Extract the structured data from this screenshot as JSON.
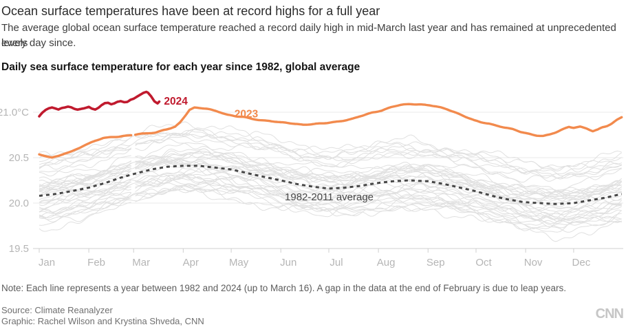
{
  "header": {
    "title": "Ocean surface temperatures have been at record highs for a full year",
    "subtitle_lines": [
      "The average global ocean surface temperature reached a record daily high in mid-March last year and has remained at unprecedented levels",
      "every day since."
    ],
    "chart_title": "Daily sea surface temperature for each year since 1982, global average"
  },
  "footer": {
    "note": "Note: Each line represents a year between 1982 and 2024 (up to March 16). A gap in the data at the end of February is due to leap years.",
    "source": "Source: Climate Reanalyzer",
    "credit": "Graphic: Rachel Wilson and Krystina Shveda, CNN",
    "logo": "CNN"
  },
  "chart_data": {
    "type": "line",
    "title": "Daily sea surface temperature for each year since 1982, global average",
    "unit": "°C",
    "grid": "horizontal-only",
    "colors": {
      "grid": "#e8e8e8",
      "axis": "#cfcfcf",
      "axis_text": "#b5b5b5",
      "background_lines": "#e0e0e0"
    },
    "y_axis": {
      "range": [
        19.45,
        21.3
      ],
      "ticks": [
        {
          "value": 21.0,
          "label": "21.0°C"
        },
        {
          "value": 20.5,
          "label": "20.5"
        },
        {
          "value": 20.0,
          "label": "20.0"
        },
        {
          "value": 19.5,
          "label": "19.5"
        }
      ]
    },
    "x_axis": {
      "month_labels": [
        "Jan",
        "Feb",
        "Mar",
        "Apr",
        "May",
        "Jun",
        "Jul",
        "Aug",
        "Sep",
        "Oct",
        "Nov",
        "Dec"
      ],
      "month_start_days": [
        0,
        31,
        59,
        90,
        120,
        151,
        181,
        212,
        243,
        273,
        304,
        334
      ],
      "days_in_year": 365
    },
    "leap_gap_day": 58.5,
    "series": [
      {
        "name": "1982-2011 average",
        "style": "dashed",
        "color": "#474747",
        "width": 3,
        "gap": false,
        "label": {
          "text": "1982-2011 average",
          "day": 153.5,
          "value": 20.07,
          "bold": false,
          "color": "#474747"
        },
        "points": [
          [
            0,
            20.08
          ],
          [
            10,
            20.1
          ],
          [
            20,
            20.13
          ],
          [
            31,
            20.17
          ],
          [
            41,
            20.22
          ],
          [
            51,
            20.28
          ],
          [
            59,
            20.32
          ],
          [
            70,
            20.37
          ],
          [
            80,
            20.4
          ],
          [
            90,
            20.41
          ],
          [
            100,
            20.41
          ],
          [
            110,
            20.39
          ],
          [
            120,
            20.37
          ],
          [
            130,
            20.33
          ],
          [
            140,
            20.29
          ],
          [
            151,
            20.25
          ],
          [
            161,
            20.21
          ],
          [
            171,
            20.18
          ],
          [
            181,
            20.16
          ],
          [
            191,
            20.17
          ],
          [
            201,
            20.19
          ],
          [
            211,
            20.22
          ],
          [
            221,
            20.24
          ],
          [
            231,
            20.25
          ],
          [
            243,
            20.24
          ],
          [
            253,
            20.21
          ],
          [
            263,
            20.17
          ],
          [
            273,
            20.13
          ],
          [
            283,
            20.08
          ],
          [
            293,
            20.04
          ],
          [
            303,
            20.01
          ],
          [
            313,
            20.0
          ],
          [
            323,
            19.99
          ],
          [
            334,
            20.0
          ],
          [
            344,
            20.03
          ],
          [
            354,
            20.06
          ],
          [
            364,
            20.1
          ]
        ]
      },
      {
        "name": "2023",
        "style": "solid",
        "color": "#f28a4d",
        "width": 3.4,
        "gap": true,
        "label": {
          "text": "2023",
          "day": 122,
          "value": 20.98,
          "bold": true,
          "color": "#f28a4d"
        },
        "points": [
          [
            0,
            20.54
          ],
          [
            4,
            20.52
          ],
          [
            8,
            20.5
          ],
          [
            12,
            20.52
          ],
          [
            16,
            20.55
          ],
          [
            20,
            20.57
          ],
          [
            24,
            20.6
          ],
          [
            28,
            20.63
          ],
          [
            31,
            20.65
          ],
          [
            35,
            20.68
          ],
          [
            40,
            20.71
          ],
          [
            45,
            20.72
          ],
          [
            50,
            20.72
          ],
          [
            55,
            20.73
          ],
          [
            59,
            20.74
          ],
          [
            64,
            20.76
          ],
          [
            68,
            20.77
          ],
          [
            73,
            20.78
          ],
          [
            78,
            20.81
          ],
          [
            82,
            20.83
          ],
          [
            85,
            20.85
          ],
          [
            88,
            20.9
          ],
          [
            91,
            20.97
          ],
          [
            94,
            21.04
          ],
          [
            97,
            21.06
          ],
          [
            101,
            21.05
          ],
          [
            105,
            21.04
          ],
          [
            109,
            21.02
          ],
          [
            113,
            21.0
          ],
          [
            118,
            20.97
          ],
          [
            123,
            20.95
          ],
          [
            128,
            20.94
          ],
          [
            133,
            20.92
          ],
          [
            138,
            20.91
          ],
          [
            144,
            20.9
          ],
          [
            151,
            20.88
          ],
          [
            158,
            20.87
          ],
          [
            165,
            20.86
          ],
          [
            172,
            20.87
          ],
          [
            178,
            20.88
          ],
          [
            184,
            20.9
          ],
          [
            190,
            20.92
          ],
          [
            196,
            20.94
          ],
          [
            202,
            20.97
          ],
          [
            208,
            21.0
          ],
          [
            214,
            21.02
          ],
          [
            220,
            21.05
          ],
          [
            226,
            21.07
          ],
          [
            232,
            21.08
          ],
          [
            238,
            21.08
          ],
          [
            244,
            21.07
          ],
          [
            250,
            21.05
          ],
          [
            255,
            21.03
          ],
          [
            260,
            21.0
          ],
          [
            264,
            20.97
          ],
          [
            268,
            20.94
          ],
          [
            272,
            20.91
          ],
          [
            276,
            20.89
          ],
          [
            281,
            20.88
          ],
          [
            286,
            20.86
          ],
          [
            291,
            20.84
          ],
          [
            296,
            20.82
          ],
          [
            301,
            20.79
          ],
          [
            306,
            20.77
          ],
          [
            311,
            20.75
          ],
          [
            315,
            20.74
          ],
          [
            319,
            20.75
          ],
          [
            323,
            20.77
          ],
          [
            327,
            20.8
          ],
          [
            331,
            20.83
          ],
          [
            334,
            20.82
          ],
          [
            338,
            20.83
          ],
          [
            342,
            20.81
          ],
          [
            346,
            20.78
          ],
          [
            349,
            20.8
          ],
          [
            352,
            20.83
          ],
          [
            355,
            20.85
          ],
          [
            358,
            20.88
          ],
          [
            361,
            20.92
          ],
          [
            364,
            20.95
          ]
        ]
      },
      {
        "name": "2024",
        "style": "solid",
        "color": "#c01a2e",
        "width": 3.6,
        "gap": false,
        "label": {
          "text": "2024",
          "day": 78,
          "value": 21.12,
          "bold": true,
          "color": "#c01a2e"
        },
        "points": [
          [
            0,
            20.95
          ],
          [
            2,
            20.99
          ],
          [
            4,
            21.02
          ],
          [
            6,
            21.04
          ],
          [
            8,
            21.05
          ],
          [
            10,
            21.04
          ],
          [
            12,
            21.03
          ],
          [
            14,
            21.05
          ],
          [
            16,
            21.06
          ],
          [
            18,
            21.07
          ],
          [
            20,
            21.06
          ],
          [
            22,
            21.04
          ],
          [
            24,
            21.03
          ],
          [
            26,
            21.04
          ],
          [
            28,
            21.05
          ],
          [
            31,
            21.07
          ],
          [
            33,
            21.05
          ],
          [
            35,
            21.04
          ],
          [
            37,
            21.06
          ],
          [
            39,
            21.09
          ],
          [
            41,
            21.11
          ],
          [
            43,
            21.11
          ],
          [
            45,
            21.09
          ],
          [
            47,
            21.1
          ],
          [
            49,
            21.12
          ],
          [
            51,
            21.13
          ],
          [
            53,
            21.12
          ],
          [
            55,
            21.12
          ],
          [
            57,
            21.14
          ],
          [
            59,
            21.15
          ],
          [
            61,
            21.17
          ],
          [
            63,
            21.19
          ],
          [
            65,
            21.21
          ],
          [
            67,
            21.22
          ],
          [
            68,
            21.21
          ],
          [
            70,
            21.17
          ],
          [
            72,
            21.12
          ],
          [
            74,
            21.1
          ],
          [
            75,
            21.12
          ]
        ]
      }
    ],
    "background_years": {
      "first": 1982,
      "last": 2022,
      "color": "#e0e0e0",
      "width": 1,
      "based_on": "1982-2011 average",
      "noise_amplitude": 0.05,
      "offsets": [
        -0.26,
        -0.18,
        -0.28,
        -0.3,
        -0.22,
        -0.12,
        -0.2,
        -0.24,
        -0.14,
        -0.13,
        -0.22,
        -0.16,
        -0.12,
        -0.06,
        -0.1,
        -0.02,
        0.08,
        -0.08,
        -0.06,
        0.02,
        0.07,
        0.09,
        0.08,
        0.11,
        0.1,
        0.07,
        0.02,
        0.1,
        0.14,
        0.05,
        0.1,
        0.14,
        0.2,
        0.3,
        0.36,
        0.34,
        0.28,
        0.34,
        0.42,
        0.34,
        0.42
      ]
    }
  }
}
